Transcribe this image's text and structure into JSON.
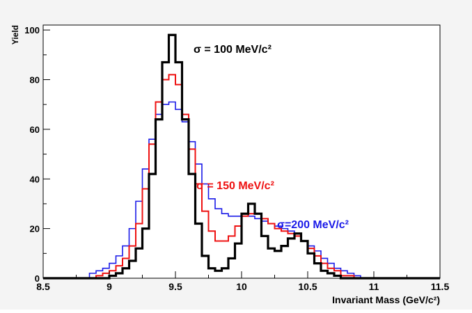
{
  "chart_data": {
    "type": "line",
    "style": "step-histogram",
    "xlabel": "Invariant Mass (GeV/c²)",
    "ylabel": "Yield",
    "xlim": [
      8.5,
      11.5
    ],
    "ylim": [
      0,
      102
    ],
    "x_ticks": [
      8.5,
      9,
      9.5,
      10,
      10.5,
      11,
      11.5
    ],
    "y_ticks": [
      0,
      20,
      40,
      60,
      80,
      100
    ],
    "grid": false,
    "bin_edges": [
      8.85,
      8.9,
      8.95,
      9.0,
      9.05,
      9.1,
      9.15,
      9.2,
      9.25,
      9.3,
      9.35,
      9.4,
      9.45,
      9.5,
      9.55,
      9.6,
      9.65,
      9.7,
      9.75,
      9.8,
      9.85,
      9.9,
      9.95,
      10.0,
      10.05,
      10.1,
      10.15,
      10.2,
      10.25,
      10.3,
      10.35,
      10.4,
      10.45,
      10.5,
      10.55,
      10.6,
      10.65,
      10.7,
      10.75,
      10.8,
      10.85,
      10.9,
      10.95
    ],
    "series": [
      {
        "label": "σ = 100 MeV/c²",
        "color": "#000000",
        "values": [
          0,
          0,
          0,
          1,
          2,
          4,
          7,
          12,
          20,
          42,
          64,
          87,
          98,
          87,
          64,
          42,
          22,
          9,
          4,
          3,
          4,
          8,
          14,
          26,
          30,
          26,
          17,
          12,
          11,
          13,
          16,
          18,
          15,
          10,
          6,
          3,
          2,
          1,
          0,
          0,
          0,
          0
        ]
      },
      {
        "label": "σ = 150 MeV/c²",
        "color": "#ee1111",
        "values": [
          0,
          1,
          2,
          3,
          5,
          8,
          13,
          22,
          36,
          54,
          71,
          80,
          82,
          78,
          66,
          52,
          38,
          27,
          19,
          15,
          15,
          17,
          21,
          25,
          26,
          26,
          24,
          22,
          20,
          19,
          18,
          17,
          15,
          12,
          9,
          6,
          4,
          3,
          1,
          1,
          0,
          0
        ]
      },
      {
        "label": "σ=200 MeV/c²",
        "color": "#1a1ae8",
        "values": [
          2,
          3,
          4,
          6,
          9,
          13,
          20,
          31,
          44,
          56,
          66,
          70,
          71,
          68,
          63,
          55,
          46,
          38,
          32,
          28,
          26,
          25,
          25,
          25,
          25,
          24,
          23,
          22,
          21,
          20,
          19,
          17,
          15,
          13,
          11,
          8,
          6,
          4,
          3,
          2,
          1,
          0
        ]
      }
    ]
  }
}
